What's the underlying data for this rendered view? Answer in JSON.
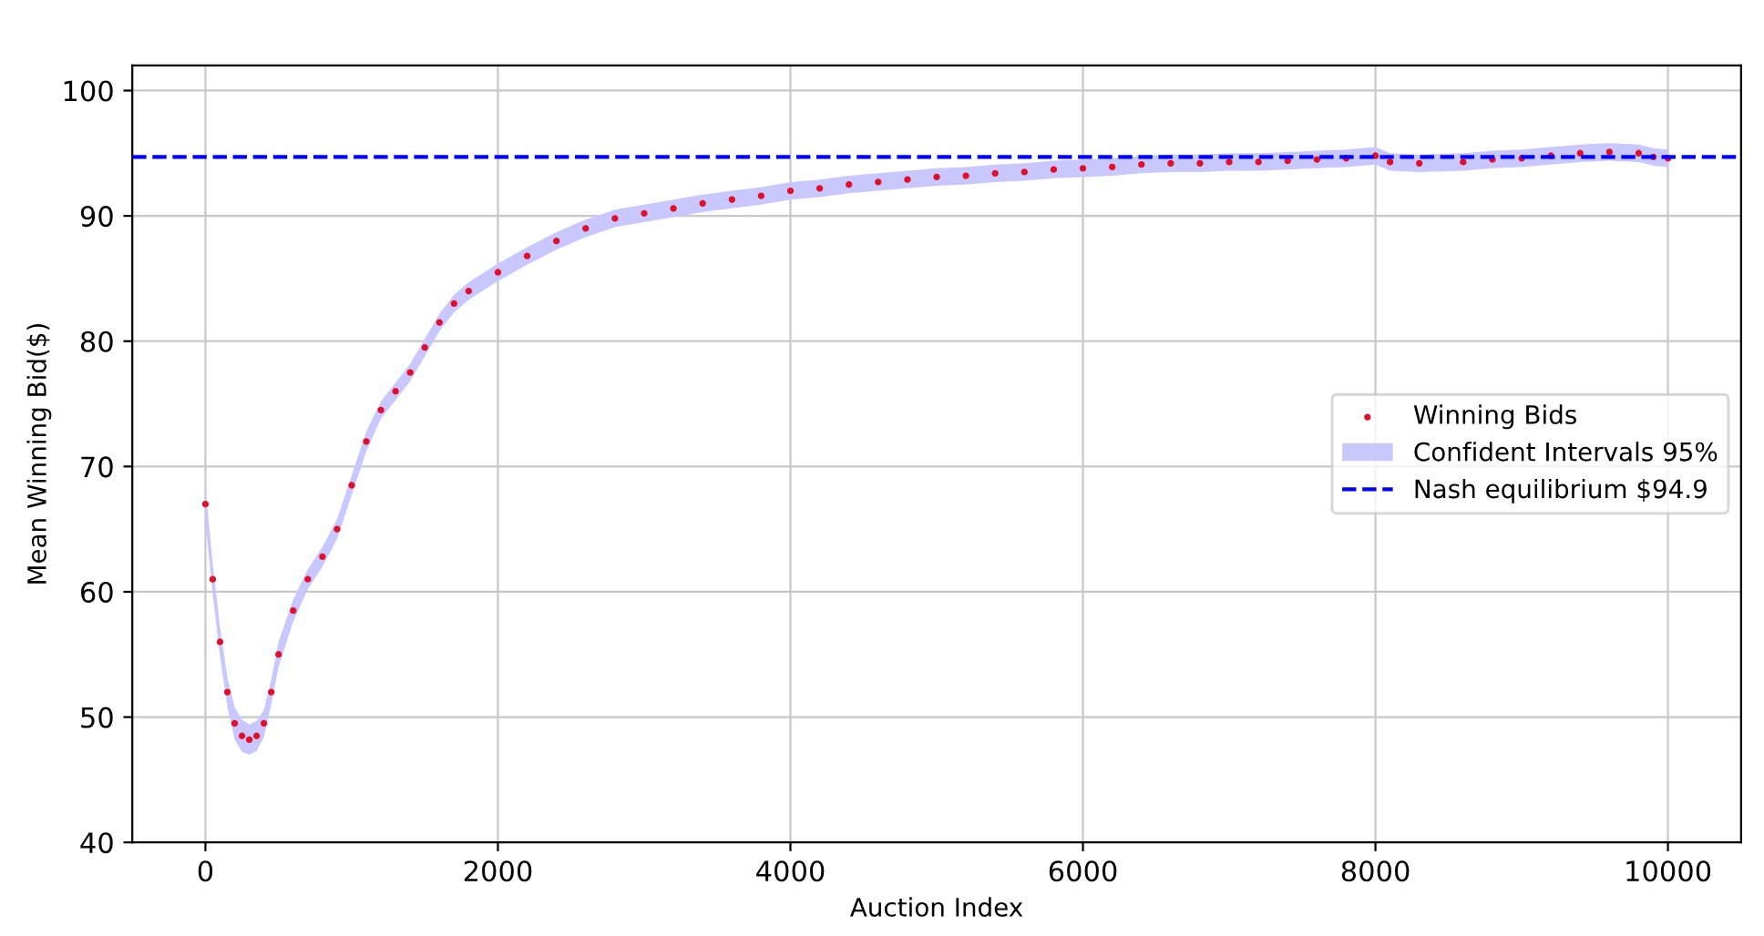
{
  "chart_data": {
    "type": "scatter",
    "xlabel": "Auction Index",
    "ylabel": "Mean Winning Bid($)",
    "xlim": [
      -500,
      10500
    ],
    "xticks": [
      0,
      2000,
      4000,
      6000,
      8000,
      10000
    ],
    "ylim": [
      40,
      102
    ],
    "yticks": [
      40,
      50,
      60,
      70,
      80,
      90,
      100
    ],
    "grid": true,
    "legend": "right",
    "marker": "circle",
    "annotations": [
      "Confident Intervals 95%"
    ],
    "x": [
      0,
      50,
      100,
      150,
      200,
      250,
      300,
      350,
      400,
      450,
      500,
      600,
      700,
      800,
      900,
      1000,
      1100,
      1200,
      1300,
      1400,
      1500,
      1600,
      1700,
      1800,
      2000,
      2200,
      2400,
      2600,
      2800,
      3000,
      3200,
      3400,
      3600,
      3800,
      4000,
      4200,
      4400,
      4600,
      4800,
      5000,
      5200,
      5400,
      5600,
      5800,
      6000,
      6200,
      6400,
      6600,
      6800,
      7000,
      7200,
      7400,
      7600,
      7800,
      8000,
      8100,
      8300,
      8600,
      8800,
      9000,
      9200,
      9400,
      9600,
      9800,
      9900,
      10000
    ],
    "series": [
      {
        "name": "Winning Bids",
        "color": "#e0102a",
        "values": [
          67,
          61,
          56,
          52,
          49.5,
          48.5,
          48.2,
          48.5,
          49.5,
          52,
          55,
          58.5,
          61,
          62.8,
          65,
          68.5,
          72,
          74.5,
          76,
          77.5,
          79.5,
          81.5,
          83,
          84,
          85.5,
          86.8,
          88,
          89,
          89.8,
          90.2,
          90.6,
          91,
          91.3,
          91.6,
          92,
          92.2,
          92.5,
          92.7,
          92.9,
          93.1,
          93.2,
          93.4,
          93.5,
          93.7,
          93.8,
          93.9,
          94.1,
          94.2,
          94.2,
          94.3,
          94.3,
          94.4,
          94.5,
          94.6,
          94.8,
          94.3,
          94.2,
          94.3,
          94.5,
          94.6,
          94.8,
          95,
          95.1,
          95,
          94.7,
          94.6
        ],
        "lower": [
          65.5,
          59.8,
          54.8,
          50.8,
          48.2,
          47.2,
          47,
          47.3,
          48.4,
          51,
          54,
          57.6,
          60.2,
          62,
          64.2,
          67.7,
          71.2,
          73.8,
          75.3,
          76.8,
          78.8,
          80.8,
          82.3,
          83.3,
          84.8,
          86.1,
          87.3,
          88.3,
          89.1,
          89.5,
          89.9,
          90.3,
          90.6,
          90.9,
          91.3,
          91.5,
          91.8,
          92,
          92.2,
          92.4,
          92.5,
          92.7,
          92.8,
          93,
          93.1,
          93.2,
          93.4,
          93.5,
          93.5,
          93.6,
          93.6,
          93.7,
          93.8,
          93.9,
          94.1,
          93.6,
          93.5,
          93.6,
          93.8,
          93.9,
          94.1,
          94.3,
          94.4,
          94.3,
          94,
          93.9
        ],
        "upper": [
          68.5,
          62.2,
          57.2,
          53.2,
          50.8,
          49.8,
          49.4,
          49.7,
          50.6,
          53,
          56,
          59.4,
          61.8,
          63.6,
          65.8,
          69.3,
          72.8,
          75.2,
          76.7,
          78.2,
          80.2,
          82.2,
          83.7,
          84.7,
          86.2,
          87.5,
          88.7,
          89.7,
          90.5,
          90.9,
          91.3,
          91.7,
          92,
          92.3,
          92.7,
          92.9,
          93.2,
          93.4,
          93.6,
          93.8,
          93.9,
          94.1,
          94.2,
          94.4,
          94.5,
          94.6,
          94.8,
          94.9,
          94.9,
          95,
          95,
          95.1,
          95.2,
          95.3,
          95.5,
          95,
          94.9,
          95,
          95.2,
          95.3,
          95.5,
          95.7,
          95.8,
          95.7,
          95.4,
          95.3
        ]
      }
    ],
    "ref_lines": [
      {
        "axis": "y",
        "value": 94.7,
        "label": "Nash equilibrium $94.9",
        "color": "#0000ff",
        "line_style": "dashed"
      }
    ]
  }
}
